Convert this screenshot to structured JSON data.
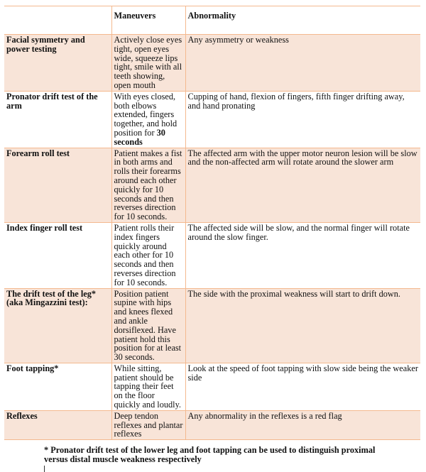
{
  "table": {
    "headers": [
      "",
      "Maneuvers",
      "Abnormality"
    ],
    "rows": [
      {
        "test": "Facial symmetry and power testing",
        "maneuver": "Actively close eyes tight, open eyes wide, squeeze lips tight, smile with all teeth showing, open mouth",
        "abnormality": "Any asymmetry or weakness"
      },
      {
        "test": "Pronator drift test of the arm",
        "maneuver": "With eyes closed, both elbows extended, fingers together, and hold position for",
        "maneuver_bold": "30 seconds",
        "abnormality": "Cupping of hand, flexion of fingers, fifth finger drifting away, and hand pronating"
      },
      {
        "test": "Forearm roll test",
        "maneuver": "Patient makes a fist in both arms and rolls their forearms around each other quickly for 10 seconds and then reverses direction for 10 seconds.",
        "abnormality": "The affected arm with the upper motor neuron lesion will be slow and the non-affected arm will rotate around the slower arm"
      },
      {
        "test": "Index finger roll test",
        "maneuver": "Patient rolls their index fingers quickly around each other for 10 seconds and then reverses direction for 10 seconds.",
        "abnormality": "The affected side will be slow, and the normal finger will rotate around the slow finger."
      },
      {
        "test": "The drift test of the leg* (aka Mingazzini test):",
        "maneuver": "Position patient supine with hips and knees flexed and ankle dorsiflexed. Have patient hold this position for at least 30 seconds.",
        "abnormality": "The side with the proximal weakness will start to drift down."
      },
      {
        "test": "Foot tapping*",
        "maneuver": "While sitting, patient should be tapping their feet on the floor quickly and loudly.",
        "abnormality": "Look at the speed of foot tapping with slow side being the weaker side"
      },
      {
        "test": "Reflexes",
        "maneuver": "Deep tendon reflexes and plantar reflexes",
        "abnormality": "Any abnormality in the reflexes is a red flag"
      }
    ]
  },
  "footnote": "* Pronator drift test of the lower leg and foot tapping can be used to distinguish proximal versus distal muscle weakness respectively",
  "colors": {
    "row_shade": "#f8e4d8",
    "border": "#f4b98f"
  }
}
